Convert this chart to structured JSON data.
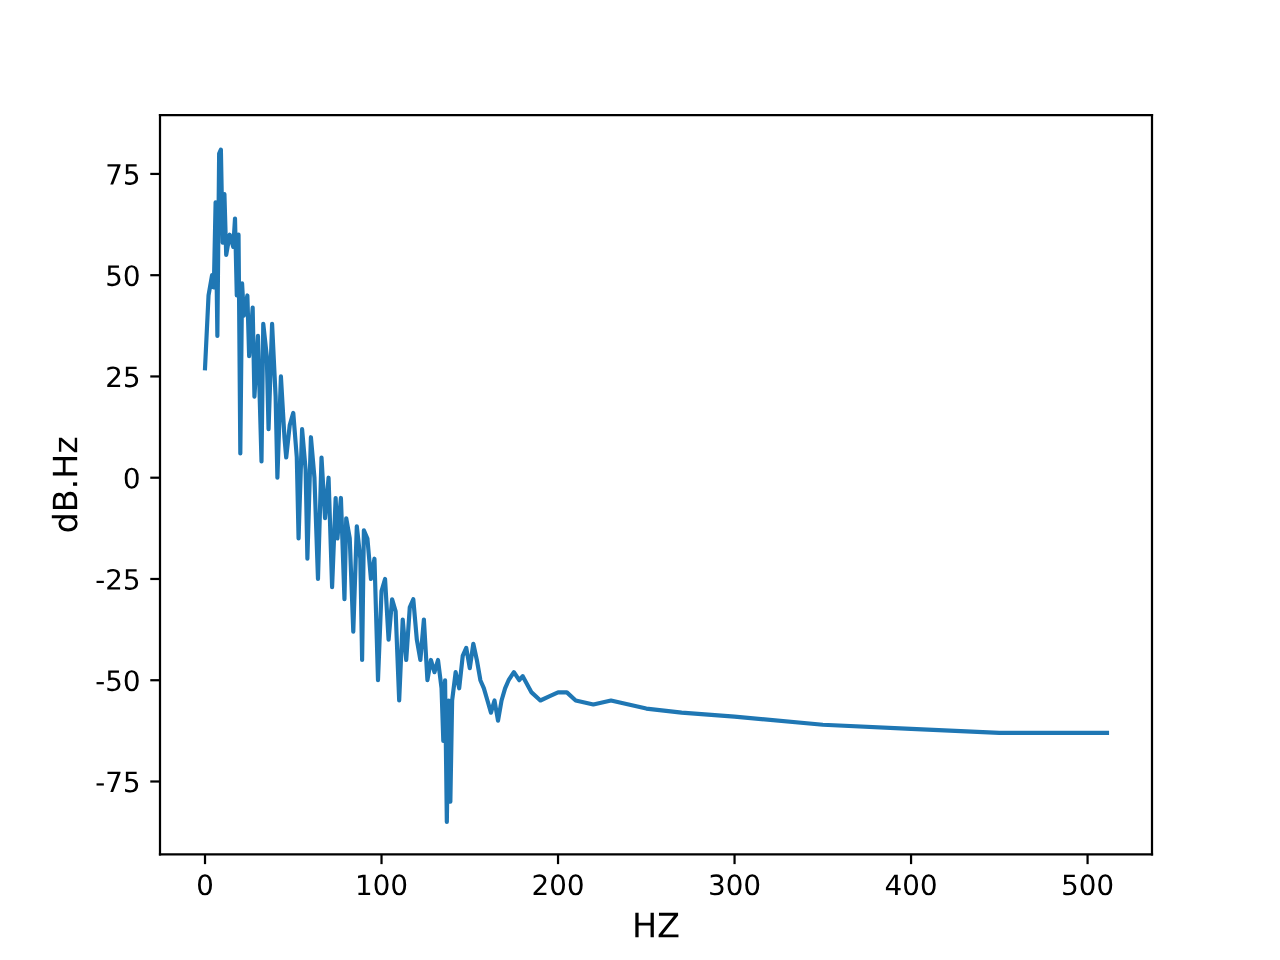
{
  "chart_data": {
    "type": "line",
    "xlabel": "HZ",
    "ylabel": "dB.Hz",
    "xlim": [
      -25.5,
      536.5
    ],
    "ylim": [
      -93,
      89.5
    ],
    "xticks": [
      0,
      100,
      200,
      300,
      400,
      500
    ],
    "yticks": [
      -75,
      -50,
      -25,
      0,
      25,
      50,
      75
    ],
    "grid": false,
    "legend": false,
    "series": [
      {
        "color": "#1f77b4",
        "x": [
          0,
          2,
          4,
          5,
          6,
          7,
          8,
          9,
          10,
          11,
          12,
          14,
          16,
          17,
          18,
          19,
          20,
          21,
          22,
          24,
          25,
          27,
          28,
          30,
          32,
          33,
          35,
          36,
          38,
          40,
          41,
          43,
          45,
          46,
          48,
          50,
          52,
          53,
          55,
          57,
          58,
          60,
          62,
          64,
          66,
          68,
          70,
          72,
          74,
          75,
          77,
          79,
          80,
          82,
          84,
          86,
          88,
          89,
          90,
          92,
          94,
          96,
          98,
          100,
          102,
          104,
          106,
          108,
          110,
          112,
          114,
          116,
          118,
          120,
          122,
          124,
          126,
          128,
          130,
          132,
          134,
          135,
          136,
          137,
          138,
          139,
          140,
          142,
          144,
          146,
          148,
          150,
          152,
          154,
          156,
          158,
          160,
          162,
          164,
          166,
          168,
          170,
          172,
          175,
          178,
          180,
          185,
          190,
          195,
          200,
          205,
          210,
          220,
          230,
          240,
          250,
          270,
          300,
          350,
          400,
          450,
          511
        ],
        "values": [
          27,
          45,
          50,
          47,
          68,
          35,
          80,
          81,
          58,
          70,
          55,
          60,
          57,
          64,
          45,
          60,
          6,
          48,
          40,
          45,
          30,
          42,
          20,
          35,
          4,
          38,
          30,
          12,
          38,
          20,
          0,
          25,
          10,
          5,
          13,
          16,
          5,
          -15,
          12,
          2,
          -20,
          10,
          0,
          -25,
          5,
          -10,
          0,
          -27,
          -5,
          -15,
          -5,
          -30,
          -10,
          -15,
          -38,
          -12,
          -20,
          -45,
          -13,
          -15,
          -25,
          -20,
          -50,
          -28,
          -25,
          -40,
          -30,
          -33,
          -55,
          -35,
          -45,
          -32,
          -30,
          -40,
          -45,
          -35,
          -50,
          -45,
          -48,
          -45,
          -52,
          -65,
          -50,
          -85,
          -55,
          -80,
          -55,
          -48,
          -52,
          -44,
          -42,
          -47,
          -41,
          -45,
          -50,
          -52,
          -55,
          -58,
          -55,
          -60,
          -55,
          -52,
          -50,
          -48,
          -50,
          -49,
          -53,
          -55,
          -54,
          -53,
          -53,
          -55,
          -56,
          -55,
          -56,
          -57,
          -58,
          -59,
          -61,
          -62,
          -63,
          -63
        ]
      }
    ]
  }
}
